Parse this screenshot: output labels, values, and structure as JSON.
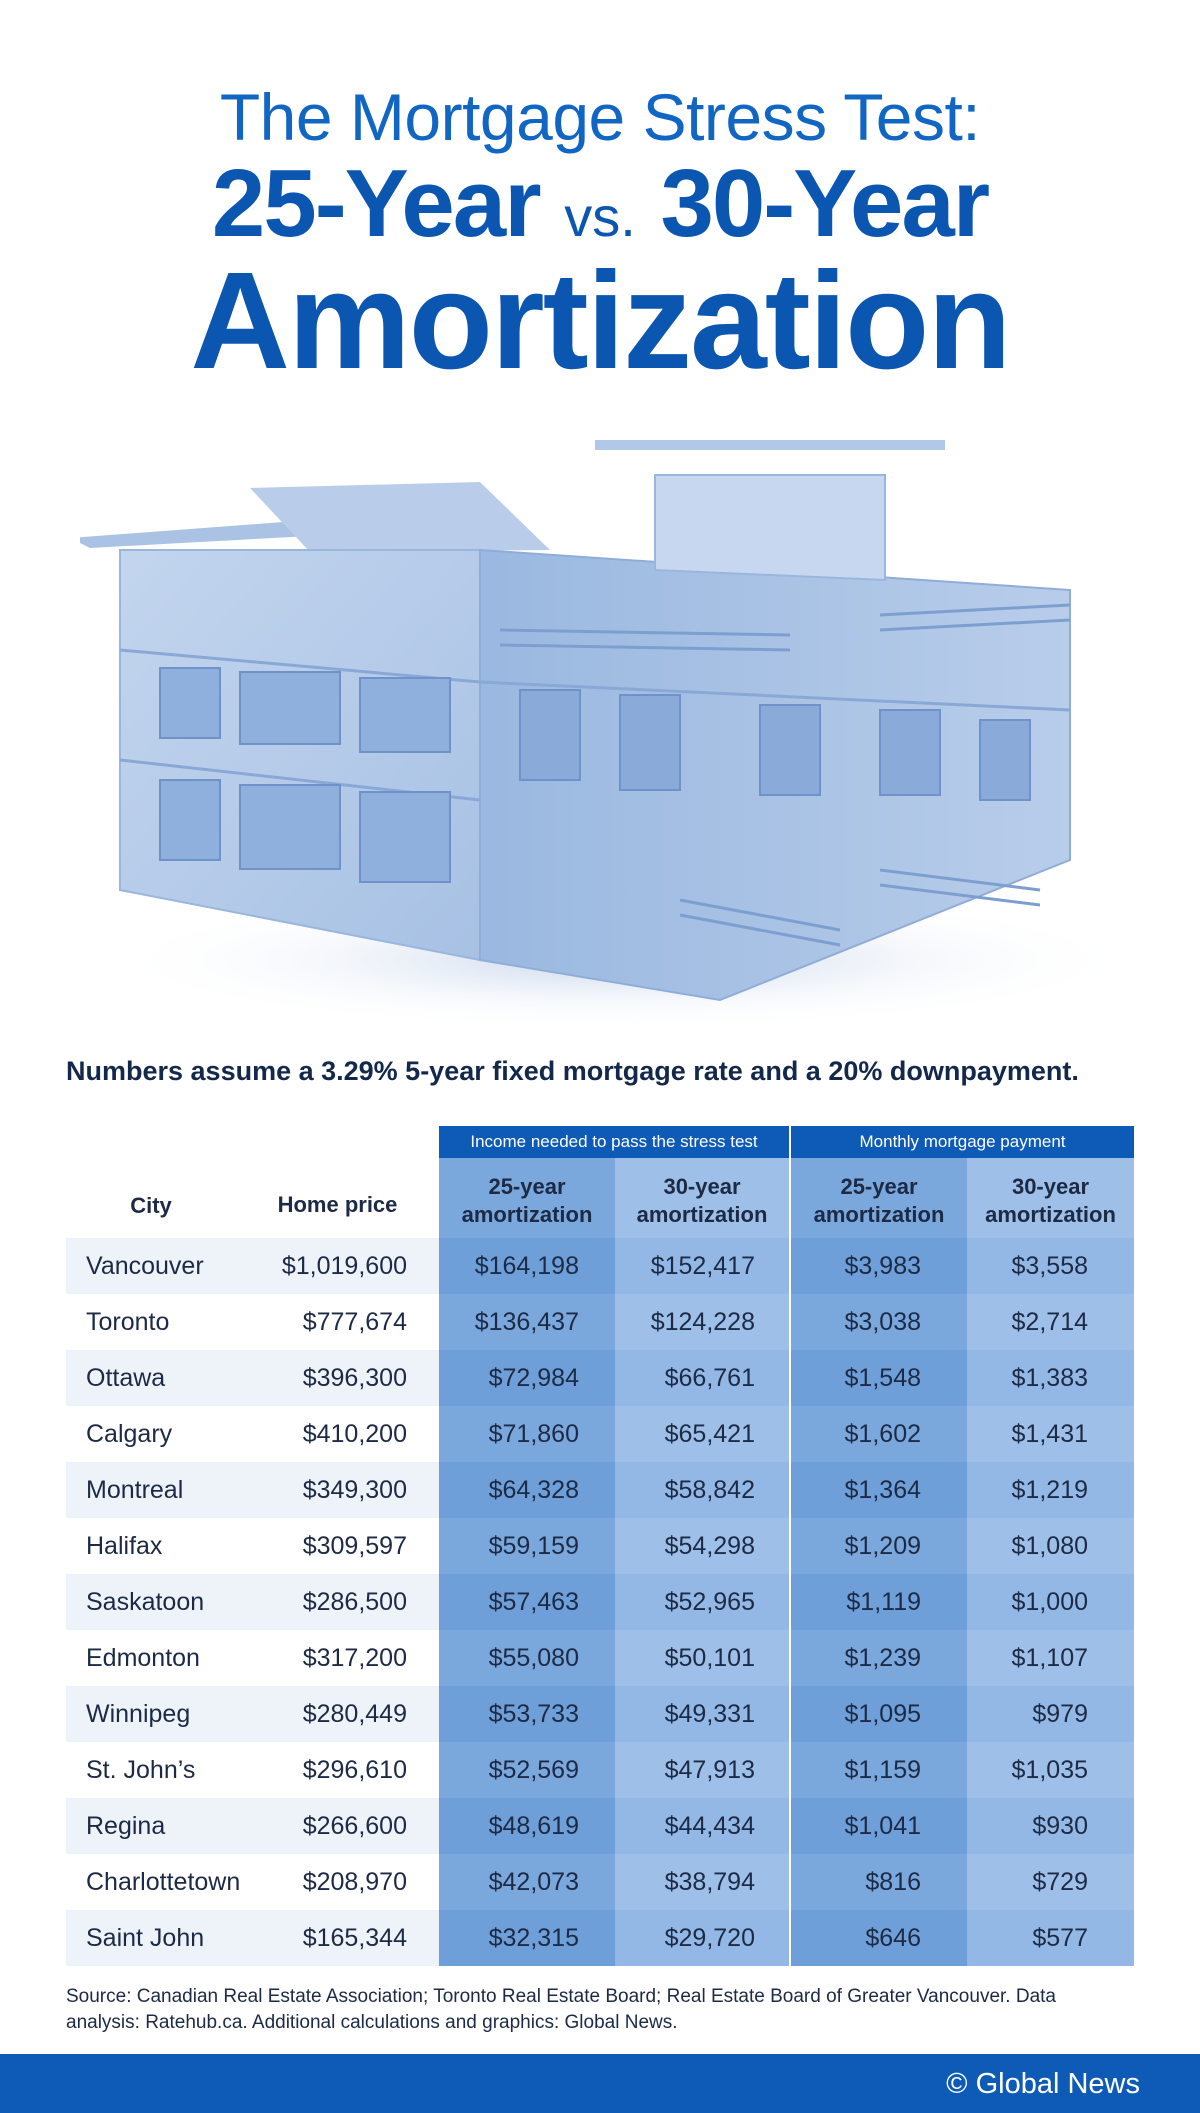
{
  "title": {
    "line1": "The Mortgage Stress Test:",
    "line2_left": "25-Year",
    "line2_vs": "vs.",
    "line2_right": "30-Year",
    "line3": "Amortization"
  },
  "subtitle": "Numbers assume a 3.29% 5-year fixed mortgage rate and a 20% downpayment.",
  "table": {
    "group_income": "Income needed to pass the stress test",
    "group_payment": "Monthly mortgage payment",
    "headers": {
      "city": "City",
      "price": "Home price",
      "inc25": "25-year amortization",
      "inc30": "30-year amortization",
      "pay25": "25-year amortization",
      "pay30": "30-year amortization"
    },
    "rows": [
      {
        "city": "Vancouver",
        "price": "$1,019,600",
        "inc25": "$164,198",
        "inc30": "$152,417",
        "pay25": "$3,983",
        "pay30": "$3,558"
      },
      {
        "city": "Toronto",
        "price": "$777,674",
        "inc25": "$136,437",
        "inc30": "$124,228",
        "pay25": "$3,038",
        "pay30": "$2,714"
      },
      {
        "city": "Ottawa",
        "price": "$396,300",
        "inc25": "$72,984",
        "inc30": "$66,761",
        "pay25": "$1,548",
        "pay30": "$1,383"
      },
      {
        "city": "Calgary",
        "price": "$410,200",
        "inc25": "$71,860",
        "inc30": "$65,421",
        "pay25": "$1,602",
        "pay30": "$1,431"
      },
      {
        "city": "Montreal",
        "price": "$349,300",
        "inc25": "$64,328",
        "inc30": "$58,842",
        "pay25": "$1,364",
        "pay30": "$1,219"
      },
      {
        "city": "Halifax",
        "price": "$309,597",
        "inc25": "$59,159",
        "inc30": "$54,298",
        "pay25": "$1,209",
        "pay30": "$1,080"
      },
      {
        "city": "Saskatoon",
        "price": "$286,500",
        "inc25": "$57,463",
        "inc30": "$52,965",
        "pay25": "$1,119",
        "pay30": "$1,000"
      },
      {
        "city": "Edmonton",
        "price": "$317,200",
        "inc25": "$55,080",
        "inc30": "$50,101",
        "pay25": "$1,239",
        "pay30": "$1,107"
      },
      {
        "city": "Winnipeg",
        "price": "$280,449",
        "inc25": "$53,733",
        "inc30": "$49,331",
        "pay25": "$1,095",
        "pay30": "$979"
      },
      {
        "city": "St. John’s",
        "price": "$296,610",
        "inc25": "$52,569",
        "inc30": "$47,913",
        "pay25": "$1,159",
        "pay30": "$1,035"
      },
      {
        "city": "Regina",
        "price": "$266,600",
        "inc25": "$48,619",
        "inc30": "$44,434",
        "pay25": "$1,041",
        "pay30": "$930"
      },
      {
        "city": "Charlottetown",
        "price": "$208,970",
        "inc25": "$42,073",
        "inc30": "$38,794",
        "pay25": "$816",
        "pay30": "$729"
      },
      {
        "city": "Saint John",
        "price": "$165,344",
        "inc25": "$32,315",
        "inc30": "$29,720",
        "pay25": "$646",
        "pay30": "$577"
      }
    ]
  },
  "source": "Source: Canadian Real Estate Association; Toronto Real Estate Board; Real Estate Board of Greater Vancouver. Data analysis: Ratehub.ca. Additional calculations and graphics: Global News.",
  "footer": {
    "brand": "© Global News"
  },
  "colors": {
    "brand_blue": "#0d5bb7",
    "col_dark": "#7aa7dc",
    "col_light": "#9dbfe8"
  },
  "illustration": "house-illustration"
}
